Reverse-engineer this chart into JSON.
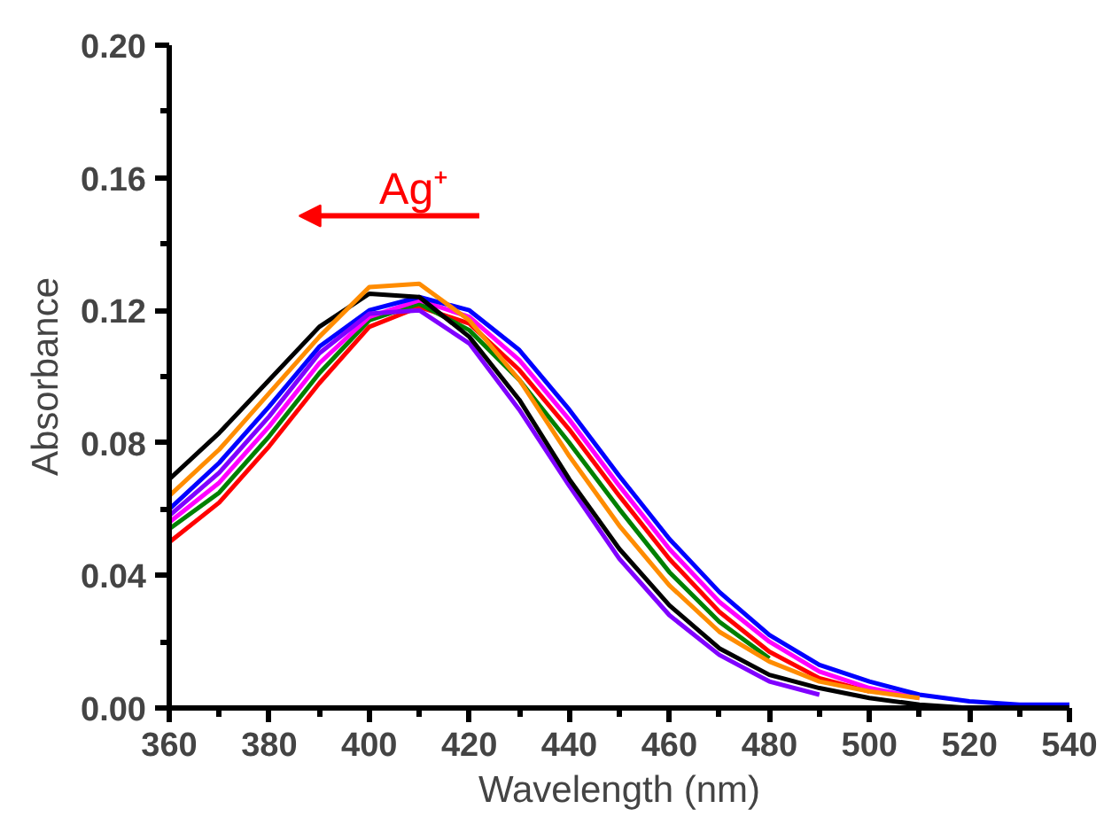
{
  "chart_data": {
    "type": "line",
    "xlabel": "Wavelength (nm)",
    "ylabel": "Absorbance",
    "annotations": [
      "Ag⁺"
    ],
    "x": [
      360,
      370,
      380,
      390,
      400,
      410,
      420,
      430,
      440,
      450,
      460,
      470,
      480,
      490,
      500,
      510,
      520,
      530,
      540
    ],
    "xlim": [
      360,
      540
    ],
    "ylim": [
      0,
      0.2
    ],
    "xticks": [
      360,
      380,
      400,
      420,
      440,
      460,
      480,
      500,
      520,
      540,
      {
        "value": 370,
        "label": null
      },
      {
        "value": 390,
        "label": null
      },
      {
        "value": 410,
        "label": null
      },
      {
        "value": 430,
        "label": null
      },
      {
        "value": 450,
        "label": null
      },
      {
        "value": 470,
        "label": null
      },
      {
        "value": 490,
        "label": null
      },
      {
        "value": 510,
        "label": null
      },
      {
        "value": 530,
        "label": null
      }
    ],
    "yticks": [
      {
        "value": 0,
        "label": "0.00"
      },
      {
        "value": 0.04,
        "label": "0.04"
      },
      {
        "value": 0.08,
        "label": "0.08"
      },
      {
        "value": 0.12,
        "label": "0.12"
      },
      {
        "value": 0.16,
        "label": "0.16"
      },
      {
        "value": 0.2,
        "label": "0.20"
      },
      {
        "value": 0.02,
        "label": null
      },
      {
        "value": 0.06,
        "label": null
      },
      {
        "value": 0.1,
        "label": null
      },
      {
        "value": 0.14,
        "label": null
      },
      {
        "value": 0.18,
        "label": null
      }
    ],
    "grid": false,
    "marker": "none",
    "line_style": "solid",
    "series": [
      {
        "color": "#ff0000",
        "values": [
          0.05,
          0.062,
          0.079,
          0.098,
          0.115,
          0.121,
          0.116,
          0.102,
          0.084,
          0.064,
          0.045,
          0.029,
          0.017,
          0.009,
          0.005,
          null,
          null,
          null,
          null
        ]
      },
      {
        "color": "#008000",
        "values": [
          0.054,
          0.065,
          0.082,
          0.101,
          0.117,
          0.122,
          0.114,
          0.099,
          0.08,
          0.06,
          0.041,
          0.026,
          0.015,
          null,
          null,
          null,
          null,
          null,
          null
        ]
      },
      {
        "color": "#ff00ff",
        "values": [
          0.056,
          0.068,
          0.085,
          0.104,
          0.118,
          0.123,
          0.118,
          0.105,
          0.087,
          0.067,
          0.048,
          0.032,
          0.02,
          0.011,
          0.006,
          0.003,
          null,
          null,
          null
        ]
      },
      {
        "color": "#0000ff",
        "values": [
          0.06,
          0.074,
          0.091,
          0.109,
          0.12,
          0.124,
          0.12,
          0.108,
          0.09,
          0.07,
          0.051,
          0.035,
          0.022,
          0.013,
          0.008,
          0.004,
          0.002,
          0.001,
          0.001
        ]
      },
      {
        "color": "#8000ff",
        "values": [
          0.058,
          0.071,
          0.088,
          0.107,
          0.119,
          0.12,
          0.11,
          0.09,
          0.067,
          0.045,
          0.028,
          0.016,
          0.008,
          0.004,
          null,
          null,
          null,
          null,
          null
        ]
      },
      {
        "color": "#000000",
        "values": [
          0.069,
          0.083,
          0.099,
          0.115,
          0.125,
          0.124,
          0.112,
          0.093,
          0.069,
          0.048,
          0.031,
          0.018,
          0.01,
          0.006,
          0.003,
          0.001,
          0.0,
          0.0,
          0.0
        ]
      },
      {
        "color": "#ff8c00",
        "values": [
          0.064,
          0.078,
          0.095,
          0.112,
          0.127,
          0.128,
          0.117,
          0.099,
          0.076,
          0.055,
          0.037,
          0.023,
          0.014,
          0.008,
          0.005,
          0.003,
          null,
          null,
          null
        ]
      }
    ]
  }
}
